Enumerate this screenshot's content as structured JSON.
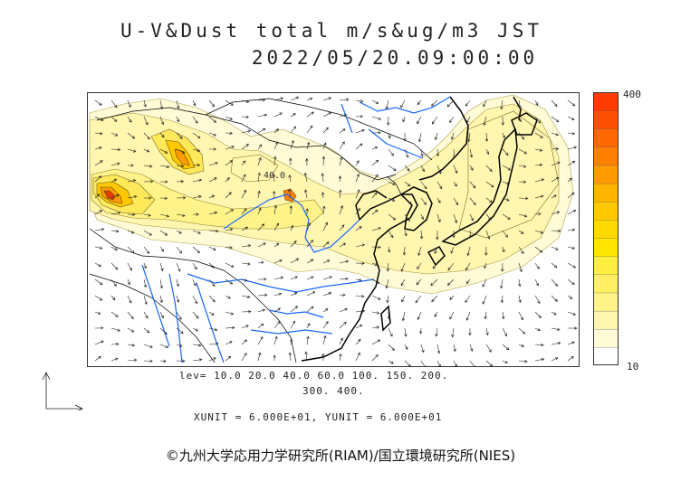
{
  "title": {
    "line1": "U-V&Dust total m/s&ug/m3 JST",
    "line2": "2022/05/20.09:00:00"
  },
  "map_contour_label": "40.0",
  "colorbar": {
    "max_label": "400",
    "min_label": "10",
    "colors": [
      "#ffffff",
      "#fffbd6",
      "#fff6b0",
      "#fff38a",
      "#fff066",
      "#ffee40",
      "#ffe600",
      "#ffd900",
      "#ffc800",
      "#ffb400",
      "#ff9b00",
      "#ff8000",
      "#ff6800",
      "#ff5000",
      "#ff3c00"
    ]
  },
  "levels": {
    "line1": "lev= 10.0 20.0 40.0 60.0 100. 150. 200.",
    "line2": "300. 400."
  },
  "units_text": "XUNIT = 6.000E+01, YUNIT = 6.000E+01",
  "copyright": "©九州大学応用力学研究所(RIAM)/国立環境研究所(NIES)",
  "colors": {
    "coast": "#000000",
    "river": "#1a66ff",
    "dust_light": "#fff6b8",
    "dust_mid": "#ffe866",
    "dust_high": "#ff9900",
    "dust_peak": "#e63c00",
    "wind_vector": "#222222"
  }
}
